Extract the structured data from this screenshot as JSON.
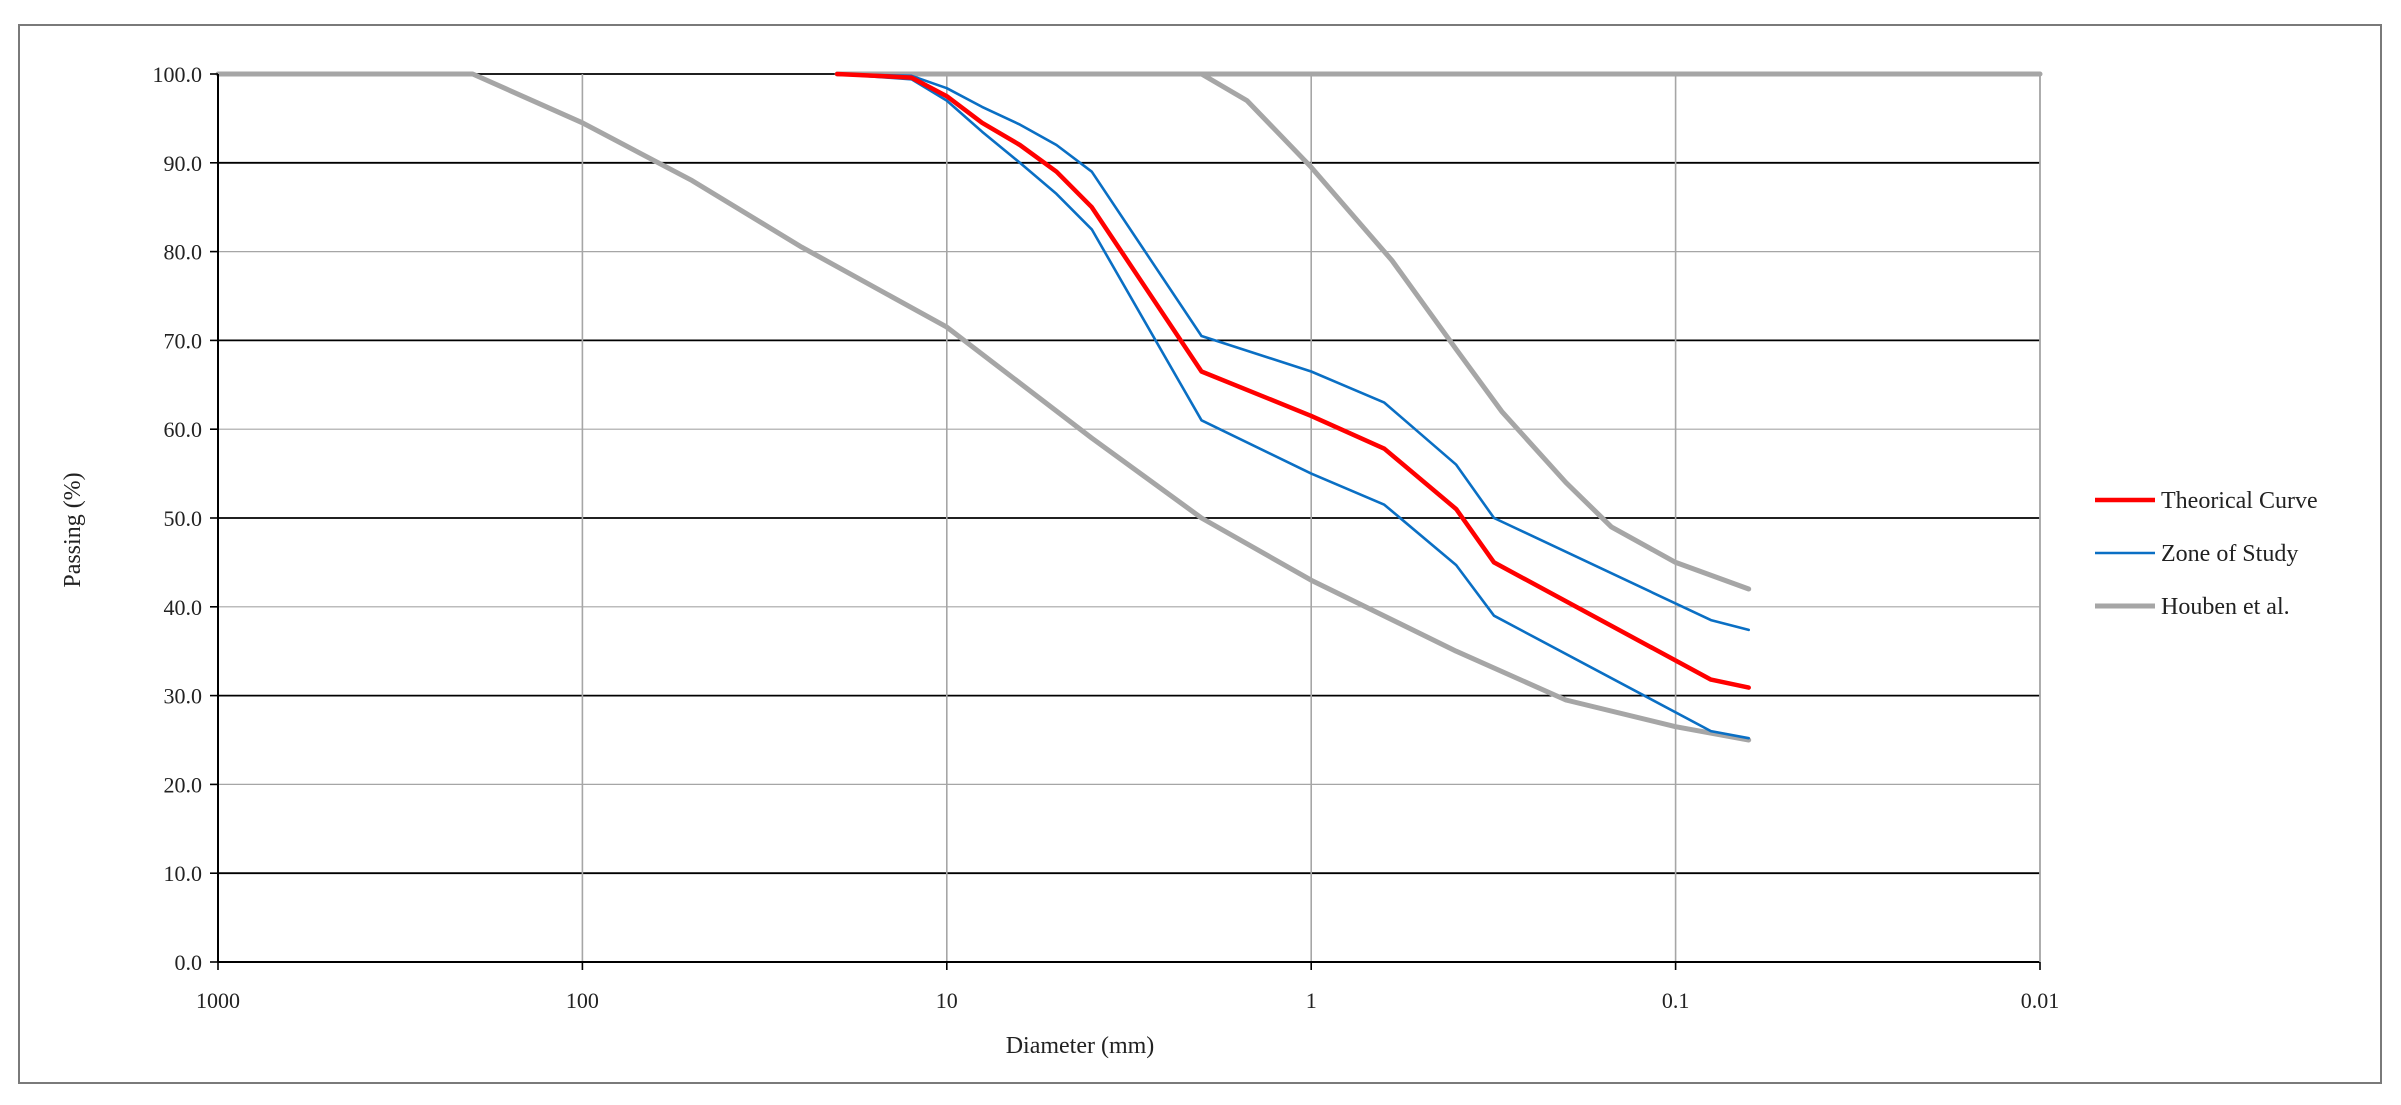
{
  "chart_data": {
    "type": "line",
    "title": "",
    "xlabel": "Diameter (mm)",
    "ylabel": "Passing (%)",
    "x_scale": "log-reversed",
    "xlim": [
      1000,
      0.01
    ],
    "ylim": [
      0,
      100
    ],
    "x_ticks": [
      1000,
      100,
      10,
      1,
      0.1,
      0.01
    ],
    "x_tick_labels": [
      "1000",
      "100",
      "10",
      "1",
      "0.1",
      "0.01"
    ],
    "y_ticks": [
      0,
      10,
      20,
      30,
      40,
      50,
      60,
      70,
      80,
      90,
      100
    ],
    "y_tick_labels": [
      "0.0",
      "10.0",
      "20.0",
      "30.0",
      "40.0",
      "50.0",
      "60.0",
      "70.0",
      "80.0",
      "90.0",
      "100.0"
    ],
    "grid": true,
    "legend_position": "right",
    "series": [
      {
        "name": "Theorical Curve",
        "group": "theorical",
        "color": "#ff0000",
        "points": [
          [
            20,
            100
          ],
          [
            12.5,
            99.6
          ],
          [
            10,
            97.5
          ],
          [
            8,
            94.5
          ],
          [
            6.3,
            92
          ],
          [
            5,
            89
          ],
          [
            4,
            85
          ],
          [
            2,
            66.5
          ],
          [
            1,
            61.5
          ],
          [
            0.63,
            57.8
          ],
          [
            0.4,
            51
          ],
          [
            0.315,
            45
          ],
          [
            0.08,
            31.8
          ],
          [
            0.063,
            30.9
          ]
        ]
      },
      {
        "name": "Zone of Study",
        "group": "zone",
        "color": "#0a6fc4",
        "points": [
          [
            20,
            100
          ],
          [
            12.5,
            99.8
          ],
          [
            10,
            98.4
          ],
          [
            8,
            96.3
          ],
          [
            6.3,
            94.3
          ],
          [
            5,
            92
          ],
          [
            4,
            89
          ],
          [
            2,
            70.5
          ],
          [
            1,
            66.5
          ],
          [
            0.63,
            63
          ],
          [
            0.4,
            56
          ],
          [
            0.315,
            50
          ],
          [
            0.08,
            38.5
          ],
          [
            0.063,
            37.4
          ]
        ]
      },
      {
        "name": "",
        "group": "zone",
        "color": "#0a6fc4",
        "points": [
          [
            20,
            100
          ],
          [
            12.5,
            99.4
          ],
          [
            10,
            97
          ],
          [
            8,
            93.5
          ],
          [
            6.3,
            90
          ],
          [
            5,
            86.5
          ],
          [
            4,
            82.5
          ],
          [
            2,
            61
          ],
          [
            1,
            55
          ],
          [
            0.63,
            51.5
          ],
          [
            0.4,
            44.7
          ],
          [
            0.315,
            39
          ],
          [
            0.08,
            26
          ],
          [
            0.063,
            25.2
          ]
        ]
      },
      {
        "name": "Houben et al.",
        "group": "houben",
        "color": "#a6a6a6",
        "points": [
          [
            1000,
            100
          ],
          [
            400,
            100
          ],
          [
            200,
            100
          ],
          [
            100,
            94.5
          ],
          [
            50,
            88
          ],
          [
            25,
            80.5
          ],
          [
            10,
            71.5
          ],
          [
            4,
            59
          ],
          [
            2,
            50
          ],
          [
            1,
            43
          ],
          [
            0.4,
            35
          ],
          [
            0.2,
            29.5
          ],
          [
            0.1,
            26.5
          ],
          [
            0.063,
            25
          ]
        ]
      },
      {
        "name": "",
        "group": "houben",
        "color": "#a6a6a6",
        "points": [
          [
            20,
            100
          ],
          [
            10,
            100
          ],
          [
            5,
            100
          ],
          [
            2,
            100
          ],
          [
            1.5,
            97
          ],
          [
            1,
            89.5
          ],
          [
            0.6,
            79
          ],
          [
            0.4,
            69
          ],
          [
            0.3,
            62
          ],
          [
            0.2,
            54
          ],
          [
            0.15,
            49
          ],
          [
            0.1,
            45
          ],
          [
            0.063,
            42
          ]
        ]
      },
      {
        "name": "",
        "group": "houben",
        "color": "#a6a6a6",
        "points": [
          [
            2,
            100
          ],
          [
            0.01,
            100
          ]
        ]
      }
    ],
    "legend": [
      {
        "label": "Theorical Curve",
        "group": "theorical",
        "color": "#ff0000"
      },
      {
        "label": "Zone of Study",
        "group": "zone",
        "color": "#0a6fc4"
      },
      {
        "label": "Houben et al.",
        "group": "houben",
        "color": "#a6a6a6"
      }
    ]
  }
}
